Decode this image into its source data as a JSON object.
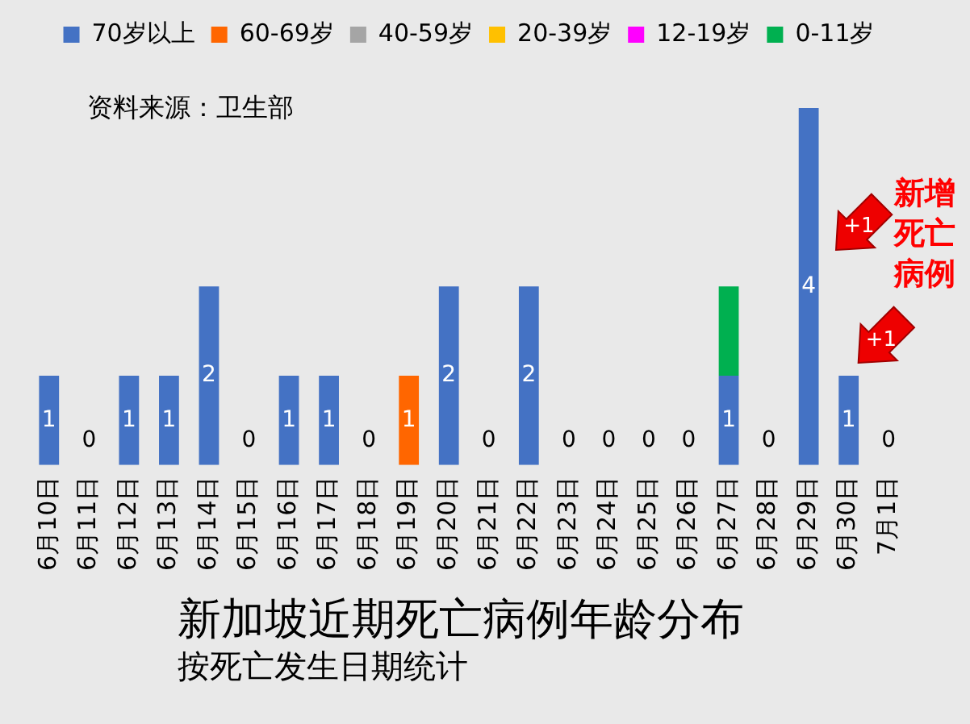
{
  "chart_data": {
    "type": "bar",
    "stacked": true,
    "title": "新加坡近期死亡病例年龄分布",
    "subtitle": "按死亡发生日期统计",
    "categories": [
      "6月10日",
      "6月11日",
      "6月12日",
      "6月13日",
      "6月14日",
      "6月15日",
      "6月16日",
      "6月17日",
      "6月18日",
      "6月19日",
      "6月20日",
      "6月21日",
      "6月22日",
      "6月23日",
      "6月24日",
      "6月25日",
      "6月26日",
      "6月27日",
      "6月28日",
      "6月29日",
      "6月30日",
      "7月1日"
    ],
    "series": [
      {
        "name": "70岁以上",
        "color": "#4472c4",
        "values": [
          1,
          0,
          1,
          1,
          2,
          0,
          1,
          1,
          0,
          0,
          2,
          0,
          2,
          0,
          0,
          0,
          0,
          1,
          0,
          4,
          1,
          0
        ],
        "value_labels": [
          "1",
          "0",
          "1",
          "1",
          "2",
          "0",
          "1",
          "1",
          "0",
          null,
          "2",
          "0",
          "2",
          "0",
          "0",
          "0",
          "0",
          "1",
          "0",
          "4",
          "1",
          "0"
        ]
      },
      {
        "name": "60-69岁",
        "color": "#ff6600",
        "values": [
          0,
          0,
          0,
          0,
          0,
          0,
          0,
          0,
          0,
          1,
          0,
          0,
          0,
          0,
          0,
          0,
          0,
          0,
          0,
          0,
          0,
          0
        ],
        "value_labels": [
          null,
          null,
          null,
          null,
          null,
          null,
          null,
          null,
          null,
          "1",
          null,
          null,
          null,
          null,
          null,
          null,
          null,
          null,
          null,
          null,
          null,
          null
        ]
      },
      {
        "name": "40-59岁",
        "color": "#a5a5a5",
        "values": [
          0,
          0,
          0,
          0,
          0,
          0,
          0,
          0,
          0,
          0,
          0,
          0,
          0,
          0,
          0,
          0,
          0,
          0,
          0,
          0,
          0,
          0
        ]
      },
      {
        "name": "20-39岁",
        "color": "#ffc000",
        "values": [
          0,
          0,
          0,
          0,
          0,
          0,
          0,
          0,
          0,
          0,
          0,
          0,
          0,
          0,
          0,
          0,
          0,
          0,
          0,
          0,
          0,
          0
        ]
      },
      {
        "name": "12-19岁",
        "color": "#ff00ff",
        "values": [
          0,
          0,
          0,
          0,
          0,
          0,
          0,
          0,
          0,
          0,
          0,
          0,
          0,
          0,
          0,
          0,
          0,
          0,
          0,
          0,
          0,
          0
        ]
      },
      {
        "name": "0-11岁",
        "color": "#00b050",
        "values": [
          0,
          0,
          0,
          0,
          0,
          0,
          0,
          0,
          0,
          0,
          0,
          0,
          0,
          0,
          0,
          0,
          0,
          1,
          0,
          0,
          0,
          0
        ]
      }
    ],
    "annotations": [
      "资料来源：卫生部",
      "新增死亡病例",
      "+1",
      {
        "text": "+1",
        "x": "6月30日",
        "y": 1
      }
    ],
    "legend": "top",
    "tick_labels": "x"
  }
}
